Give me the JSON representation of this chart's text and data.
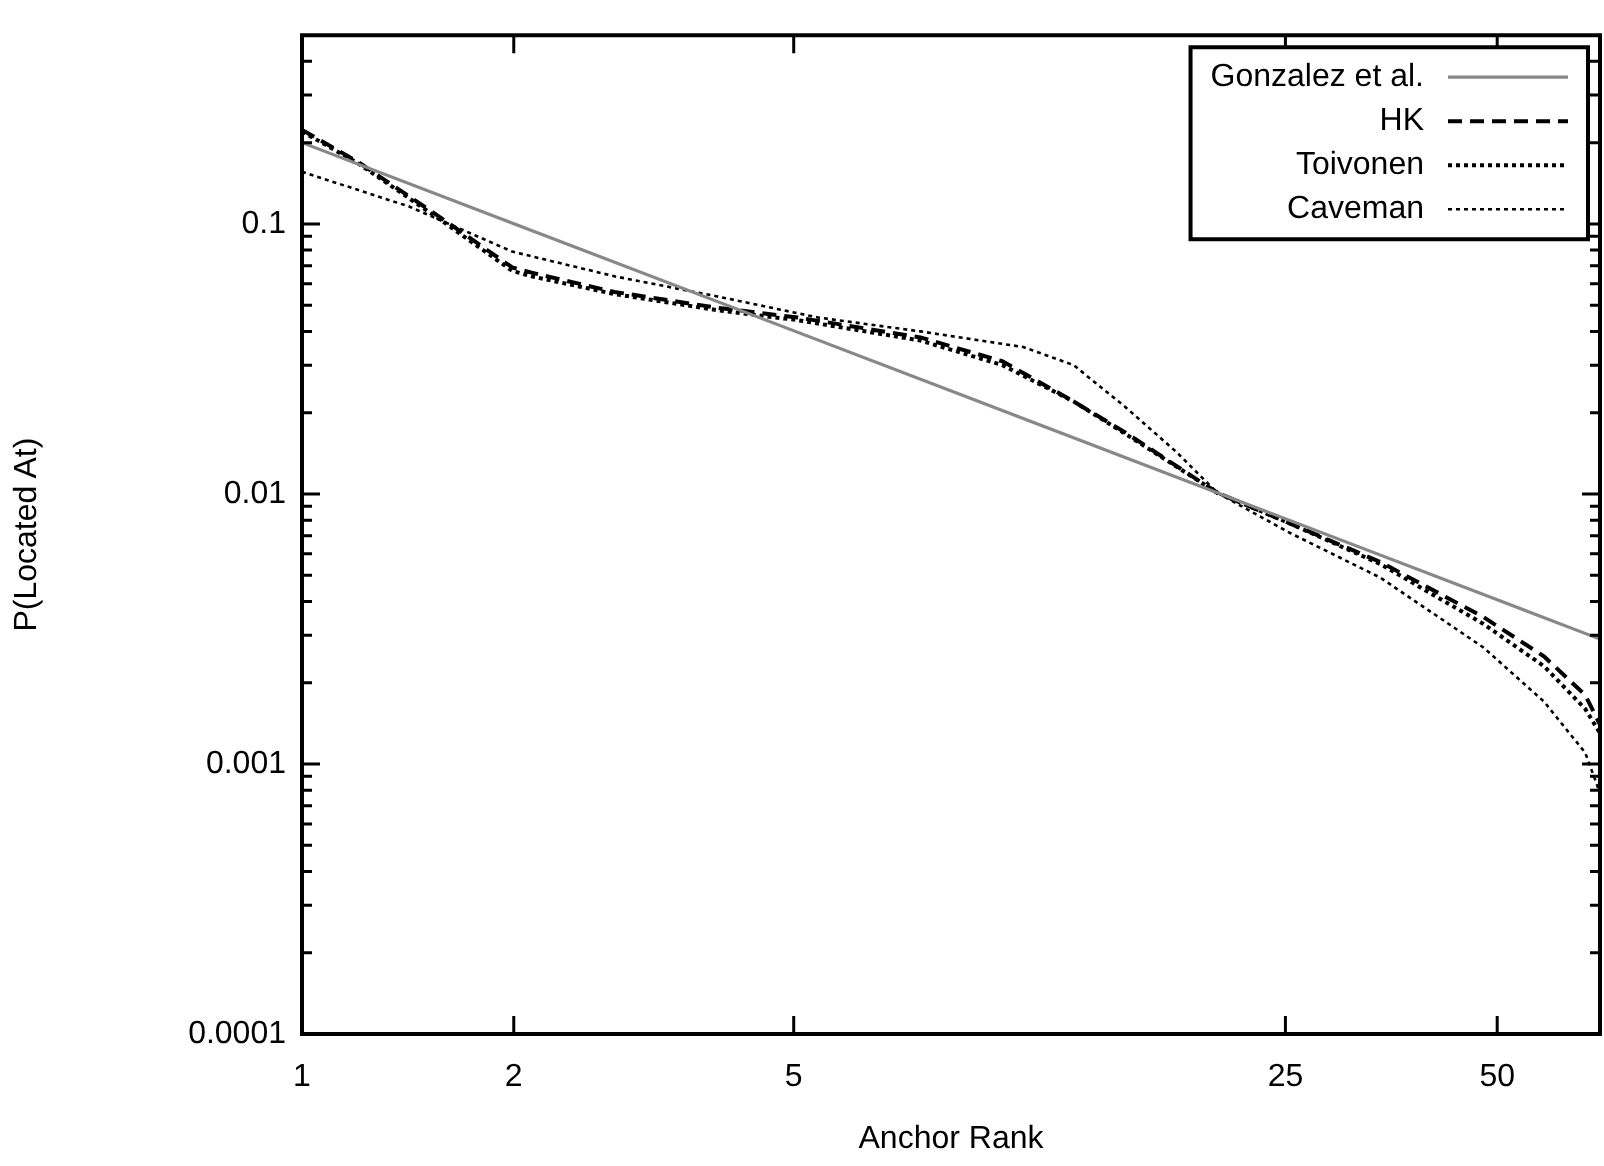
{
  "chart_data": {
    "type": "line",
    "xlabel": "Anchor Rank",
    "ylabel": "P(Located At)",
    "log": "xy",
    "grid": false,
    "legend": "top right",
    "marker": "none",
    "xlim": [
      1,
      70
    ],
    "xticks": [
      1,
      2,
      5,
      25,
      50
    ],
    "ylim": [
      0.0001,
      0.5
    ],
    "yticks": [
      0.0001,
      {
        "value": 0.0002,
        "label": null
      },
      {
        "value": 0.0003,
        "label": null
      },
      {
        "value": 0.0004,
        "label": null
      },
      {
        "value": 0.0005,
        "label": null
      },
      {
        "value": 0.0006,
        "label": null
      },
      {
        "value": 0.0007,
        "label": null
      },
      {
        "value": 0.0008,
        "label": null
      },
      {
        "value": 0.0009,
        "label": null
      },
      0.001,
      {
        "value": 0.002,
        "label": null
      },
      {
        "value": 0.003,
        "label": null
      },
      {
        "value": 0.004,
        "label": null
      },
      {
        "value": 0.005,
        "label": null
      },
      {
        "value": 0.006,
        "label": null
      },
      {
        "value": 0.007,
        "label": null
      },
      {
        "value": 0.008,
        "label": null
      },
      {
        "value": 0.009,
        "label": null
      },
      0.01,
      {
        "value": 0.02,
        "label": null
      },
      {
        "value": 0.03,
        "label": null
      },
      {
        "value": 0.04,
        "label": null
      },
      {
        "value": 0.05,
        "label": null
      },
      {
        "value": 0.06,
        "label": null
      },
      {
        "value": 0.07,
        "label": null
      },
      {
        "value": 0.08,
        "label": null
      },
      {
        "value": 0.09,
        "label": null
      },
      0.1,
      {
        "value": 0.2,
        "label": null
      },
      {
        "value": 0.3,
        "label": null
      },
      {
        "value": 0.4,
        "label": null
      }
    ],
    "series": [
      {
        "name": "Gonzalez et al.",
        "color": "#888888",
        "line_style": "solid",
        "x": [
          1,
          70
        ],
        "values": [
          0.2,
          0.0029
        ]
      },
      {
        "name": "HK",
        "color": "#000000",
        "line_style": "dashed",
        "x": [
          1,
          1.2,
          1.57,
          1.99,
          2.12,
          2.78,
          3.88,
          5.07,
          7.57,
          9.9,
          12.5,
          14.8,
          20,
          25.3,
          34.1,
          47.8,
          58.3,
          66.7,
          70
        ],
        "values": [
          0.223,
          0.17,
          0.106,
          0.069,
          0.066,
          0.056,
          0.049,
          0.045,
          0.038,
          0.031,
          0.022,
          0.0169,
          0.0101,
          0.0078,
          0.0056,
          0.0035,
          0.0025,
          0.0018,
          0.0014
        ]
      },
      {
        "name": "Toivonen",
        "color": "#000000",
        "line_style": "dotted",
        "x": [
          1,
          1.2,
          1.57,
          1.99,
          2.12,
          2.78,
          3.88,
          5.07,
          7.57,
          9.9,
          12.5,
          14.8,
          20,
          25.3,
          34.1,
          47.8,
          58.3,
          66.7,
          70
        ],
        "values": [
          0.22,
          0.168,
          0.104,
          0.067,
          0.064,
          0.055,
          0.048,
          0.044,
          0.037,
          0.03,
          0.022,
          0.0167,
          0.0101,
          0.0078,
          0.0055,
          0.0033,
          0.0023,
          0.0016,
          0.0013
        ]
      },
      {
        "name": "Caveman",
        "color": "#000000",
        "line_style": "dotted",
        "x": [
          1,
          1.42,
          1.99,
          2.78,
          3.88,
          5.42,
          7.57,
          10.6,
          12.5,
          14.8,
          17.5,
          20,
          25.3,
          34.1,
          47.8,
          58.3,
          66.7,
          70
        ],
        "values": [
          0.156,
          0.116,
          0.079,
          0.064,
          0.054,
          0.045,
          0.04,
          0.035,
          0.03,
          0.021,
          0.0143,
          0.0101,
          0.0072,
          0.0049,
          0.0027,
          0.0017,
          0.0011,
          0.00078
        ]
      }
    ]
  }
}
